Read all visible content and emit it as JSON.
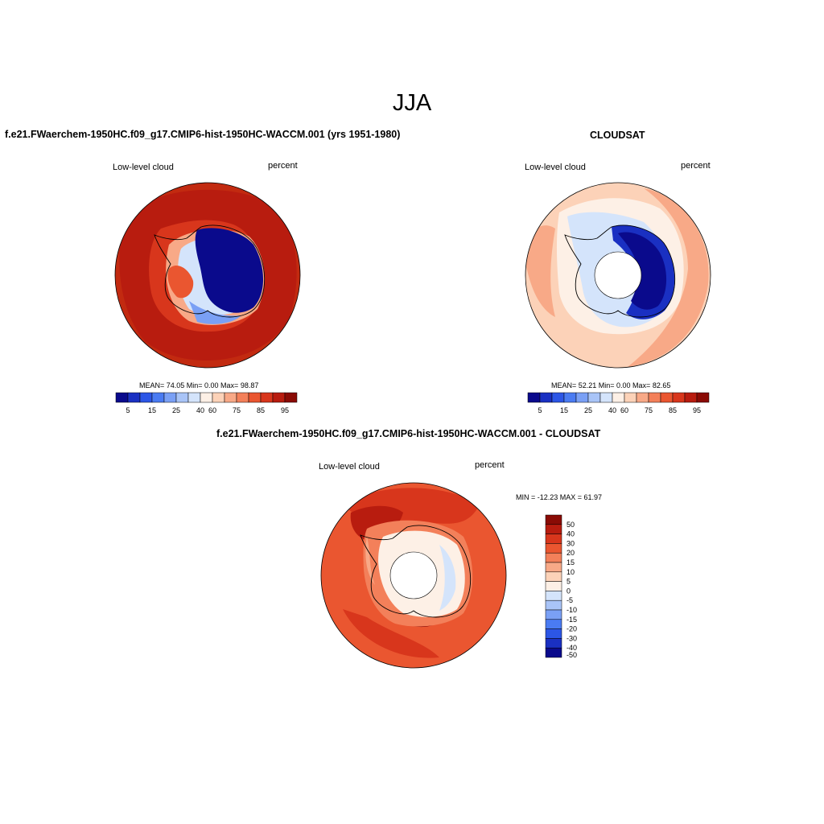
{
  "page_title": "JJA",
  "panels": {
    "model": {
      "title": "f.e21.FWaerchem-1950HC.f09_g17.CMIP6-hist-1950HC-WACCM.001 (yrs 1951-1980)",
      "left_label": "Low-level cloud",
      "right_label": "percent",
      "stats": "MEAN=  74.05  Min=   0.00  Max=  98.87",
      "colorbar_ticks": [
        "5",
        "15",
        "25",
        "40",
        "60",
        "75",
        "85",
        "95"
      ]
    },
    "obs": {
      "title": "CLOUDSAT",
      "left_label": "Low-level cloud",
      "right_label": "percent",
      "stats": "MEAN=  52.21  Min=   0.00  Max=  82.65",
      "colorbar_ticks": [
        "5",
        "15",
        "25",
        "40",
        "60",
        "75",
        "85",
        "95"
      ]
    },
    "diff": {
      "title": "f.e21.FWaerchem-1950HC.f09_g17.CMIP6-hist-1950HC-WACCM.001 - CLOUDSAT",
      "left_label": "Low-level cloud",
      "right_label": "percent",
      "stats": "MIN = -12.23 MAX =  61.97",
      "colorbar_ticks": [
        "50",
        "40",
        "30",
        "20",
        "15",
        "10",
        "5",
        "0",
        "-5",
        "-10",
        "-15",
        "-20",
        "-30",
        "-40",
        "-50"
      ]
    }
  },
  "colors": {
    "seq_bar": [
      "#0a0a8c",
      "#1a30c2",
      "#2c56e6",
      "#4a7bf2",
      "#7aa0f5",
      "#a9c4f7",
      "#d4e4fb",
      "#fdf0e6",
      "#fcd2b8",
      "#f8a987",
      "#f3805a",
      "#ea5630",
      "#d8361c",
      "#b81c0f",
      "#8a0b05"
    ],
    "div_bar": [
      "#8a0b05",
      "#b81c0f",
      "#d8361c",
      "#ea5630",
      "#f3805a",
      "#f8a987",
      "#fcd2b8",
      "#fdf0e6",
      "#d4e4fb",
      "#a9c4f7",
      "#7aa0f5",
      "#4a7bf2",
      "#2c56e6",
      "#1a30c2",
      "#0a0a8c"
    ]
  }
}
